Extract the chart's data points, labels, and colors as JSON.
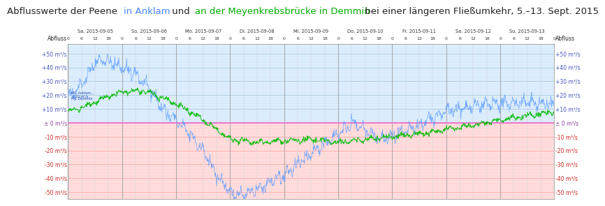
{
  "title_segments": [
    {
      "text": "Abflusswerte der Peene ",
      "color": "#222222"
    },
    {
      "text": "in Anklam",
      "color": "#4488ff"
    },
    {
      "text": " und ",
      "color": "#222222"
    },
    {
      "text": "an der Meyenkrebsbrücke in Demmin",
      "color": "#00aa00"
    },
    {
      "text": " bei einer längeren Fließumkehr, 5.–13. Sept. 2015",
      "color": "#222222"
    }
  ],
  "ylabel": "Abfluss",
  "ytick_vals": [
    50,
    40,
    30,
    20,
    10,
    0,
    -10,
    -20,
    -30,
    -40,
    -50
  ],
  "ytick_labels": [
    "+50 m³/s",
    "+40 m³/s",
    "+30 m³/s",
    "+20 m³/s",
    "+10 m³/s",
    "± 0 m³/s",
    "-10 m³/s",
    "-20 m³/s",
    "-30 m³/s",
    "-40 m³/s",
    "-50 m³/s"
  ],
  "ylim": [
    -55,
    57
  ],
  "day_labels": [
    "Sa. 2015-09-05",
    "So. 2015-09-06",
    "Mo. 2015-09-07",
    "Di. 2015-09-08",
    "Mi. 2015-09-09",
    "Do. 2015-09-10",
    "Fr. 2015-09-11",
    "Sa. 2015-09-12",
    "So. 2015-09-13"
  ],
  "color_anklam": "#5599ff",
  "color_demmin": "#00bb00",
  "color_zero_line": "#ee77cc",
  "bg_upper": "#ddeeff",
  "bg_lower": "#ffdddd",
  "grid_color_upper_major": "#aaccdd",
  "grid_color_upper_minor": "#ccddee",
  "grid_color_lower_major": "#ffaaaa",
  "grid_color_lower_minor": "#ffcccc",
  "grid_color_vert_major": "#999999",
  "grid_color_vert_minor": "#cccccc",
  "color_ytick_pos": "#4455bb",
  "color_ytick_zero": "#884499",
  "color_ytick_neg": "#cc2222",
  "num_days": 9,
  "title_fontsize": 9.5,
  "tick_fontsize": 5.5,
  "axis_label_fontsize": 5.5,
  "day_label_fontsize": 4.8,
  "hour_label_fontsize": 4.5
}
